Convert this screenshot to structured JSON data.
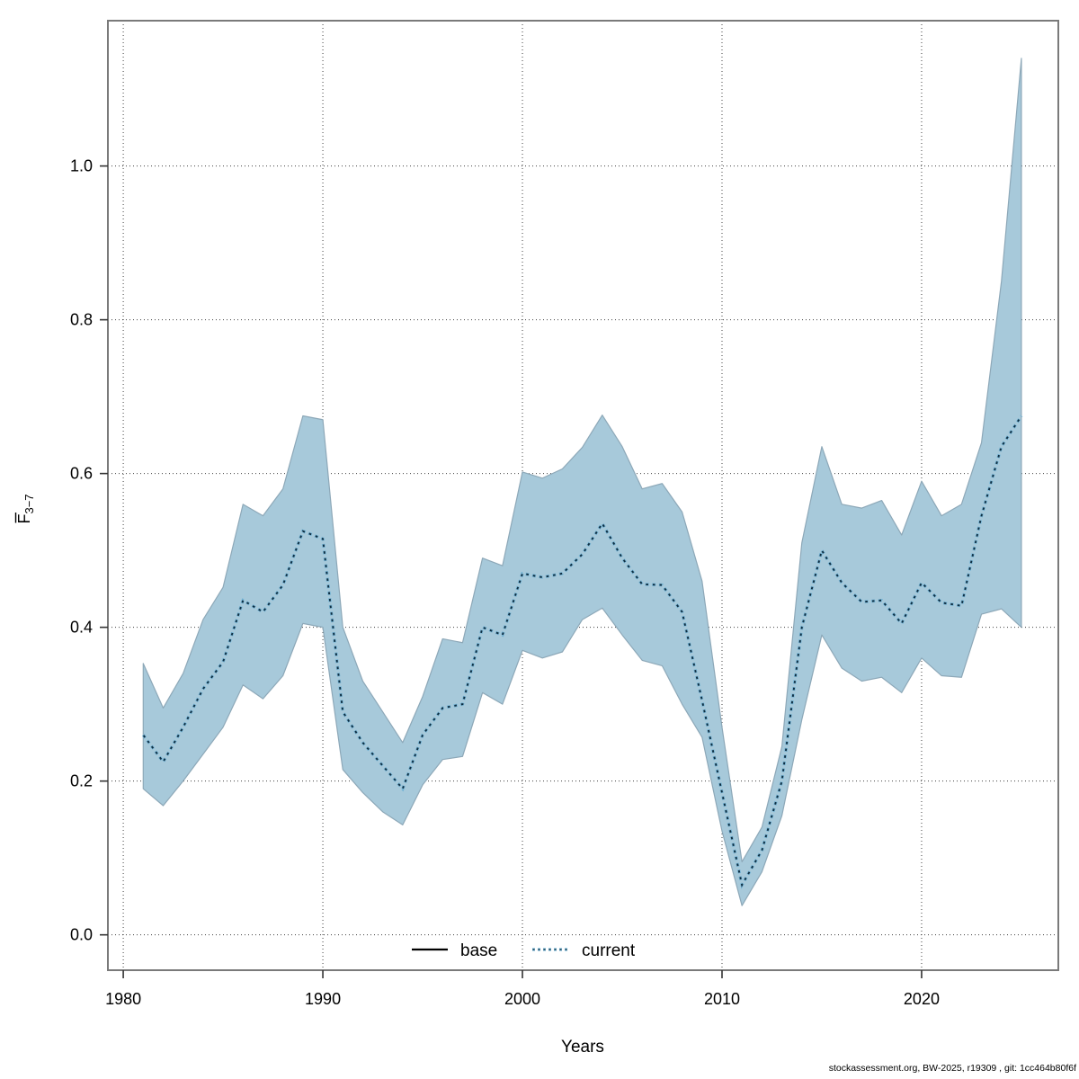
{
  "figure": {
    "footer": "stockassessment.org, BW-2025, r19309 , git: 1cc464b80f6f"
  },
  "axes": {
    "xlabel": "Years",
    "ylabel_f": "F",
    "ylabel_sub": "3−7"
  },
  "legend": {
    "base_label": "base",
    "current_label": "current"
  },
  "colors": {
    "band_fill": "#a7c9da",
    "band_stroke": "#8da8b8",
    "line_light": "#74b3d4",
    "line_dark": "#0e2c3f",
    "base_line": "#000000",
    "plot_border": "#7a7a7a",
    "grid": "#404040"
  },
  "chart_data": {
    "type": "line",
    "title": "",
    "xlabel": "Years",
    "ylabel": "F3-7 (mean F, ages 3-7)",
    "grid": true,
    "legend_position": "bottom-center-inside",
    "xlim": [
      1979.23,
      2026.85
    ],
    "ylim": [
      -0.046,
      1.189
    ],
    "x_ticks": [
      1980,
      1990,
      2000,
      2010,
      2020
    ],
    "x_tick_labels": [
      "1980",
      "1990",
      "2000",
      "2010",
      "2020"
    ],
    "y_ticks": [
      0.0,
      0.2,
      0.4,
      0.6,
      0.8,
      1.0
    ],
    "y_tick_labels": [
      "0.0",
      "0.2",
      "0.4",
      "0.6",
      "0.8",
      "1.0"
    ],
    "years": [
      1981,
      1982,
      1983,
      1984,
      1985,
      1986,
      1987,
      1988,
      1989,
      1990,
      1991,
      1992,
      1993,
      1994,
      1995,
      1996,
      1997,
      1998,
      1999,
      2000,
      2001,
      2002,
      2003,
      2004,
      2005,
      2006,
      2007,
      2008,
      2009,
      2010,
      2011,
      2012,
      2013,
      2014,
      2015,
      2016,
      2017,
      2018,
      2019,
      2020,
      2021,
      2022,
      2023,
      2024,
      2025
    ],
    "series": [
      {
        "name": "current",
        "style": "dotted",
        "values": [
          0.26,
          0.225,
          0.27,
          0.32,
          0.355,
          0.435,
          0.42,
          0.455,
          0.525,
          0.515,
          0.29,
          0.25,
          0.22,
          0.19,
          0.26,
          0.295,
          0.3,
          0.4,
          0.39,
          0.47,
          0.465,
          0.47,
          0.495,
          0.535,
          0.49,
          0.456,
          0.455,
          0.42,
          0.305,
          0.185,
          0.065,
          0.11,
          0.2,
          0.4,
          0.5,
          0.458,
          0.433,
          0.435,
          0.405,
          0.458,
          0.432,
          0.428,
          0.545,
          0.635,
          0.675
        ],
        "lower": [
          0.19,
          0.168,
          0.2,
          0.235,
          0.27,
          0.325,
          0.307,
          0.337,
          0.405,
          0.4,
          0.215,
          0.185,
          0.16,
          0.143,
          0.195,
          0.228,
          0.232,
          0.315,
          0.3,
          0.37,
          0.36,
          0.368,
          0.41,
          0.425,
          0.39,
          0.357,
          0.35,
          0.3,
          0.257,
          0.135,
          0.038,
          0.082,
          0.155,
          0.28,
          0.39,
          0.347,
          0.33,
          0.335,
          0.315,
          0.36,
          0.337,
          0.335,
          0.417,
          0.424,
          0.4
        ],
        "upper": [
          0.353,
          0.295,
          0.34,
          0.41,
          0.452,
          0.56,
          0.545,
          0.58,
          0.675,
          0.67,
          0.4,
          0.33,
          0.29,
          0.25,
          0.31,
          0.385,
          0.38,
          0.49,
          0.48,
          0.602,
          0.594,
          0.606,
          0.634,
          0.676,
          0.635,
          0.58,
          0.587,
          0.55,
          0.46,
          0.27,
          0.095,
          0.14,
          0.245,
          0.51,
          0.635,
          0.56,
          0.555,
          0.565,
          0.52,
          0.59,
          0.545,
          0.56,
          0.64,
          0.85,
          1.14
        ]
      },
      {
        "name": "base",
        "style": "solid",
        "note": "legend entry visible; line coincides beneath current confidence band"
      }
    ]
  }
}
